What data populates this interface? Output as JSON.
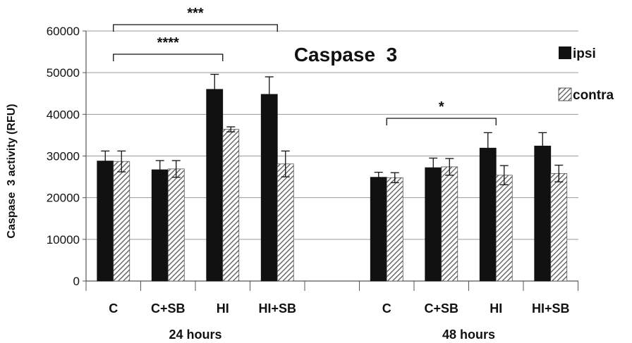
{
  "chart_data": {
    "type": "bar",
    "title": "Caspase  3",
    "ylabel": "Caspase  3 activity (RFU)",
    "xlabel": "",
    "ylim": [
      0,
      60000
    ],
    "yticks": [
      0,
      10000,
      20000,
      30000,
      40000,
      50000,
      60000
    ],
    "yticks_labels": [
      "0",
      "10000",
      "20000",
      "30000",
      "40000",
      "50000",
      "60000"
    ],
    "grid": true,
    "legend_position": "top-right",
    "groups": [
      {
        "label": "24 hours",
        "categories": [
          "C",
          "C+SB",
          "HI",
          "HI+SB"
        ],
        "series": [
          {
            "name": "ipsi",
            "values": [
              28800,
              26700,
              46000,
              44800
            ],
            "errors": [
              2400,
              2200,
              3600,
              4200
            ]
          },
          {
            "name": "contra",
            "values": [
              28700,
              26900,
              36400,
              28100
            ],
            "errors": [
              2500,
              2000,
              600,
              3100
            ]
          }
        ]
      },
      {
        "label": "48 hours",
        "categories": [
          "C",
          "C+SB",
          "HI",
          "HI+SB"
        ],
        "series": [
          {
            "name": "ipsi",
            "values": [
              24900,
              27200,
              31900,
              32400
            ],
            "errors": [
              1200,
              2300,
              3700,
              3200
            ]
          },
          {
            "name": "contra",
            "values": [
              24800,
              27400,
              25400,
              25800
            ],
            "errors": [
              1200,
              2000,
              2300,
              2000
            ]
          }
        ]
      }
    ],
    "significance": [
      {
        "label": "***",
        "group": 0,
        "from_category": 0,
        "to_category": 3
      },
      {
        "label": "****",
        "group": 0,
        "from_category": 0,
        "to_category": 2
      },
      {
        "label": "*",
        "group": 1,
        "from_category": 0,
        "to_category": 2
      }
    ],
    "colors": {
      "ipsi": "#111111",
      "contra_hatch": "#555555",
      "grid": "#9a9a9a",
      "axis": "#555555"
    }
  }
}
